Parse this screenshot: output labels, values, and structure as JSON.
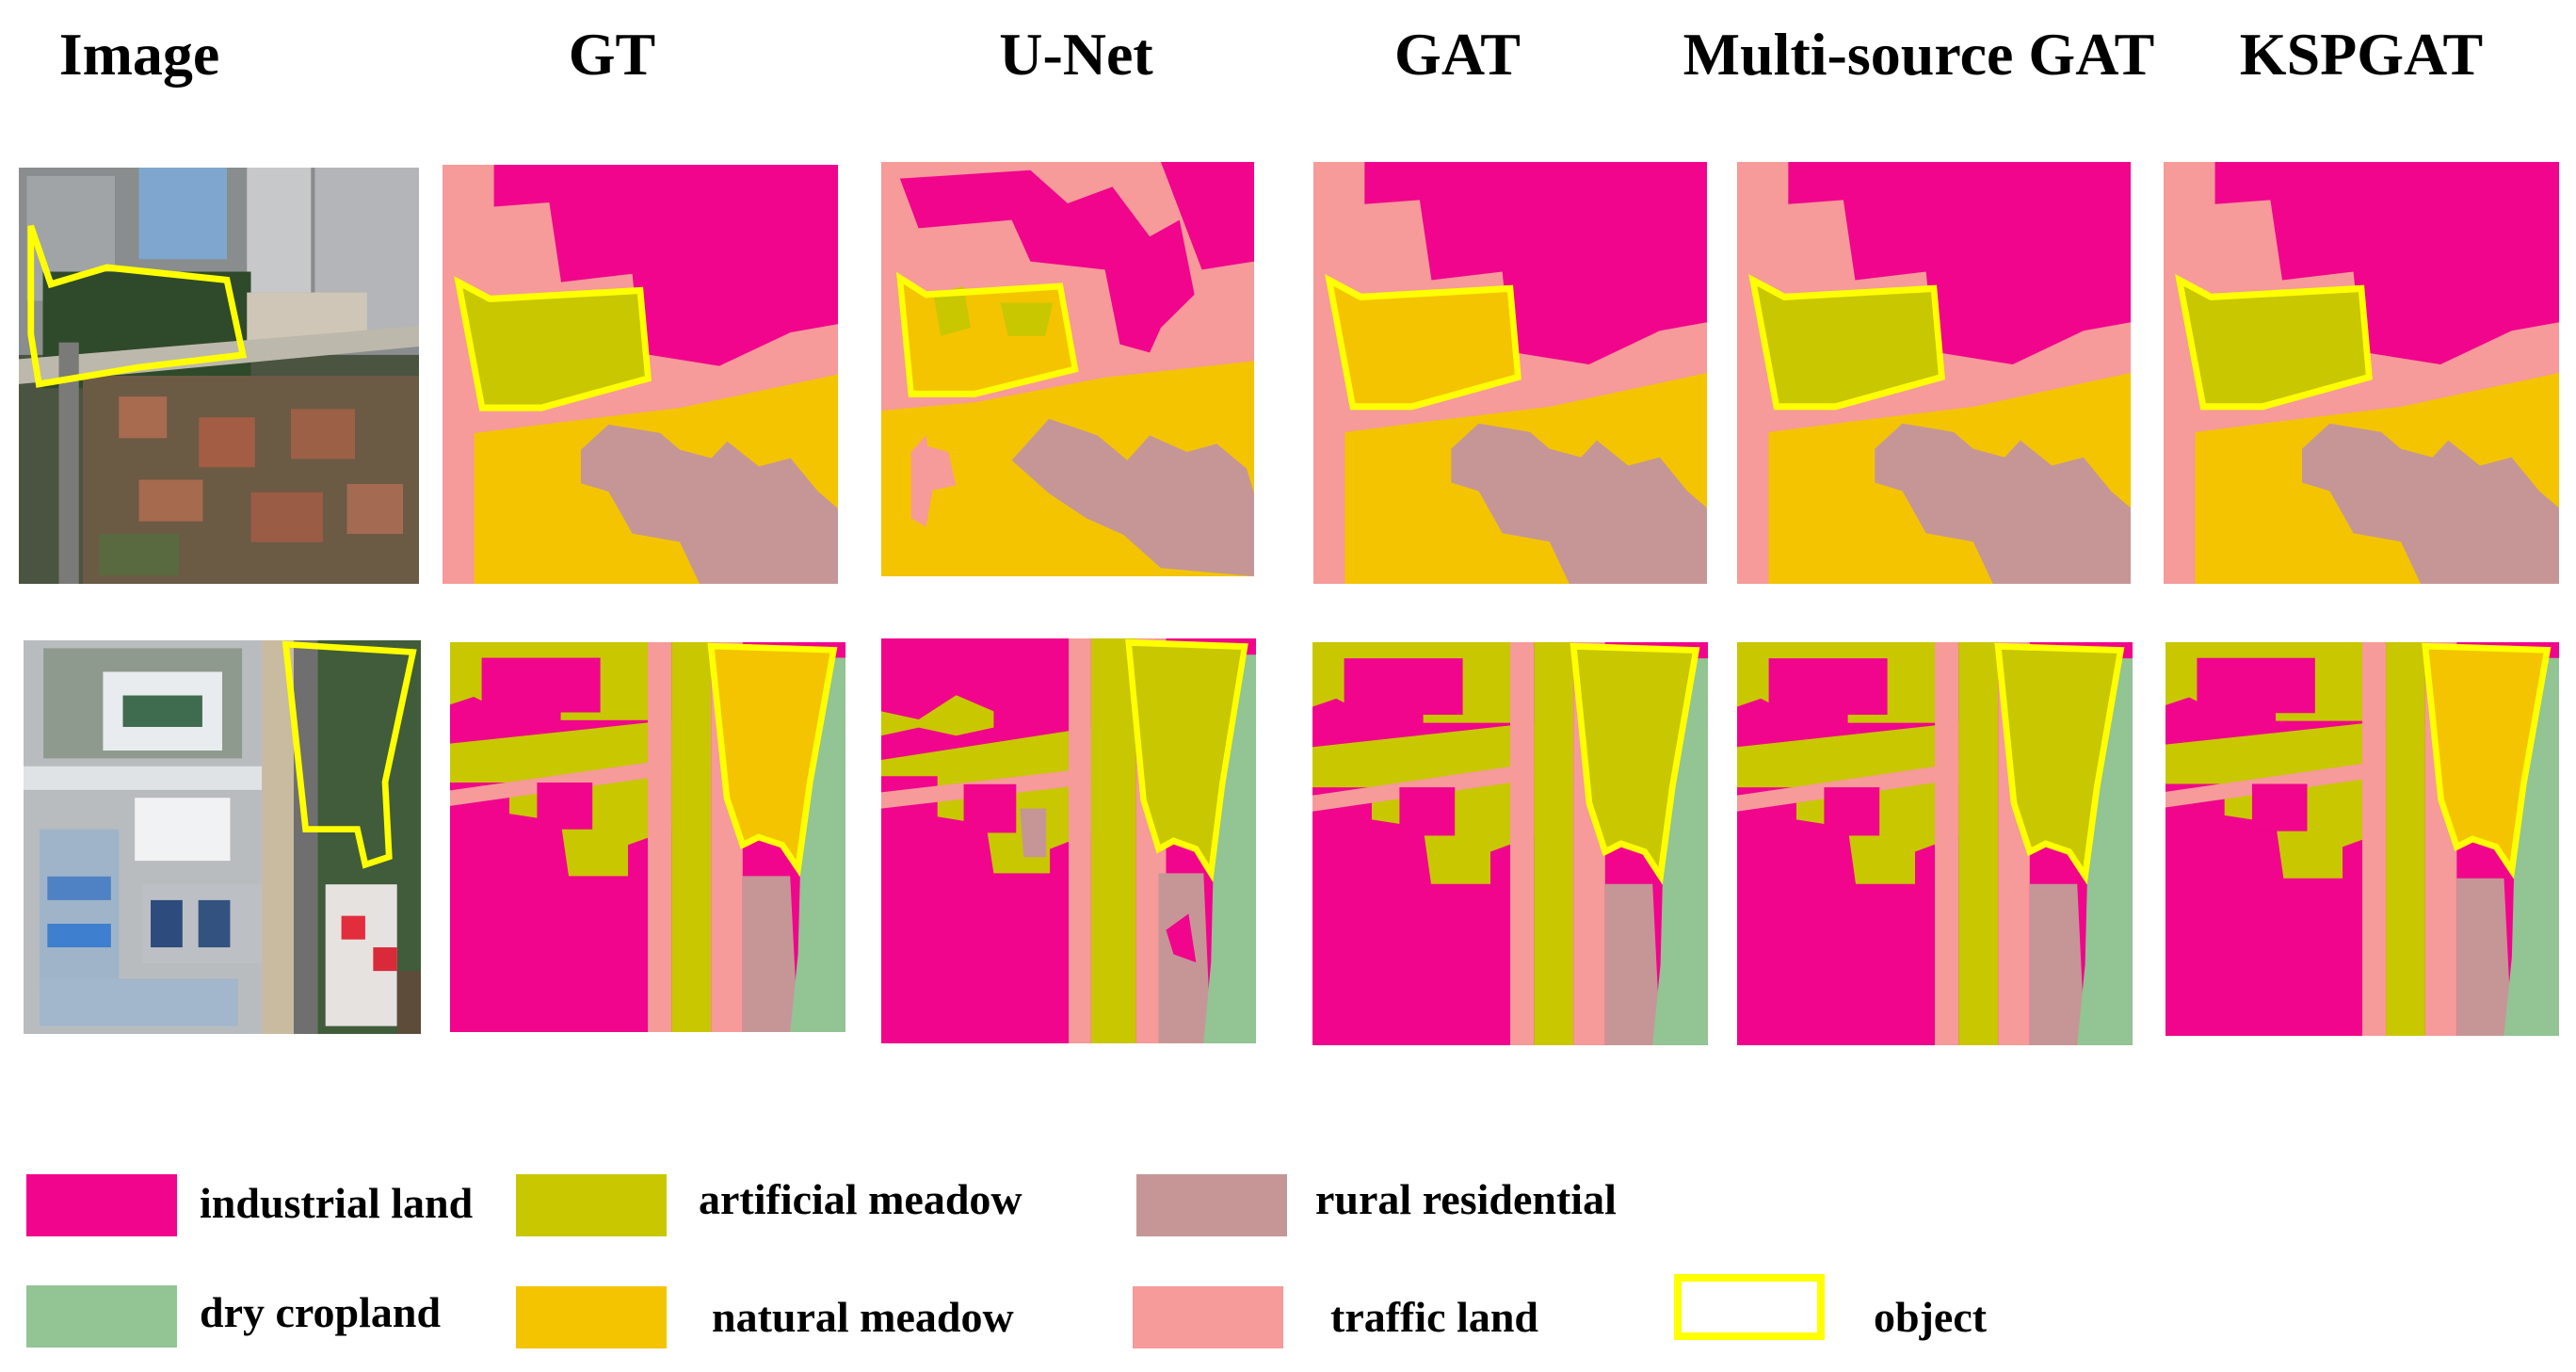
{
  "headers": [
    "Image",
    "GT",
    "U-Net",
    "GAT",
    "Multi-source GAT",
    "KSPGAT"
  ],
  "colors": {
    "industrial_land": "#f0058c",
    "artificial_meadow": "#c8c700",
    "rural_residential": "#c69696",
    "dry_cropland": "#92c494",
    "natural_meadow": "#f4c400",
    "traffic_land": "#f69a9a",
    "object": "#ffff00"
  },
  "legend": [
    {
      "label": "industrial land",
      "color": "#f0058c",
      "icon": "swatch-industrial-land"
    },
    {
      "label": "artificial meadow",
      "color": "#c8c700",
      "icon": "swatch-artificial-meadow"
    },
    {
      "label": "rural residential",
      "color": "#c69696",
      "icon": "swatch-rural-residential"
    },
    {
      "label": "dry cropland",
      "color": "#92c494",
      "icon": "swatch-dry-cropland"
    },
    {
      "label": "natural meadow",
      "color": "#f4c400",
      "icon": "swatch-natural-meadow"
    },
    {
      "label": "traffic land",
      "color": "#f69a9a",
      "icon": "swatch-traffic-land"
    },
    {
      "label": "object",
      "color": "#ffff00",
      "icon": "object-outline-icon"
    }
  ]
}
